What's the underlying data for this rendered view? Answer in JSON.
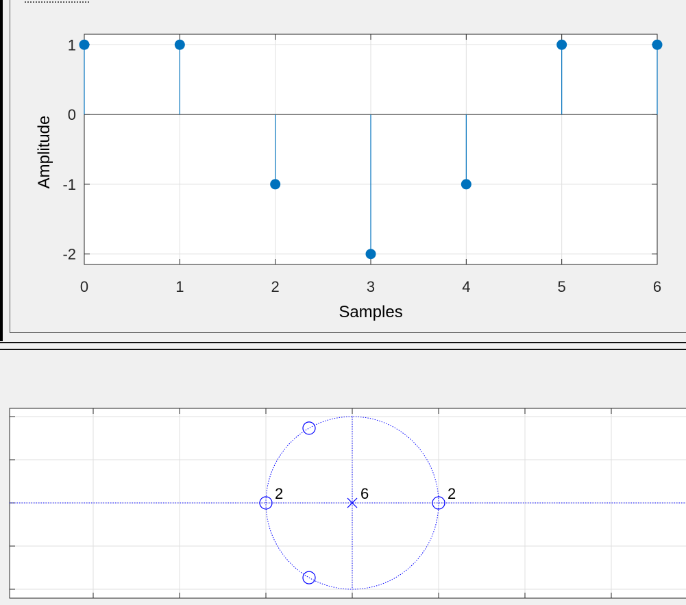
{
  "chart_data": [
    {
      "type": "stem",
      "title": "",
      "xlabel": "Samples",
      "ylabel": "Amplitude",
      "x": [
        0,
        1,
        2,
        3,
        4,
        5,
        6
      ],
      "values": [
        1,
        1,
        -1,
        -2,
        -1,
        1,
        1
      ],
      "xlim": [
        0,
        6
      ],
      "ylim": [
        -2.15,
        1.15
      ],
      "xticks": [
        "0",
        "1",
        "2",
        "3",
        "4",
        "5",
        "6"
      ],
      "yticks": [
        "1",
        "0",
        "-1",
        "-2"
      ],
      "ytick_values": [
        1,
        0,
        -1,
        -2
      ],
      "grid": true,
      "color": "#0072bd"
    },
    {
      "type": "scatter",
      "title": "",
      "xlabel": "",
      "ylabel": "",
      "zeros": [
        {
          "re": -1,
          "im": 0,
          "multiplicity": "2"
        },
        {
          "re": 1,
          "im": 0,
          "multiplicity": "2"
        },
        {
          "re": -0.5,
          "im": 0.866
        },
        {
          "re": -0.5,
          "im": -0.866
        }
      ],
      "poles": [
        {
          "re": 0,
          "im": 0,
          "multiplicity": "6"
        }
      ],
      "unit_circle": true,
      "xlim": [
        -4,
        4
      ],
      "ylim": [
        -1,
        1
      ],
      "grid": true,
      "color": "#0000ff"
    }
  ]
}
